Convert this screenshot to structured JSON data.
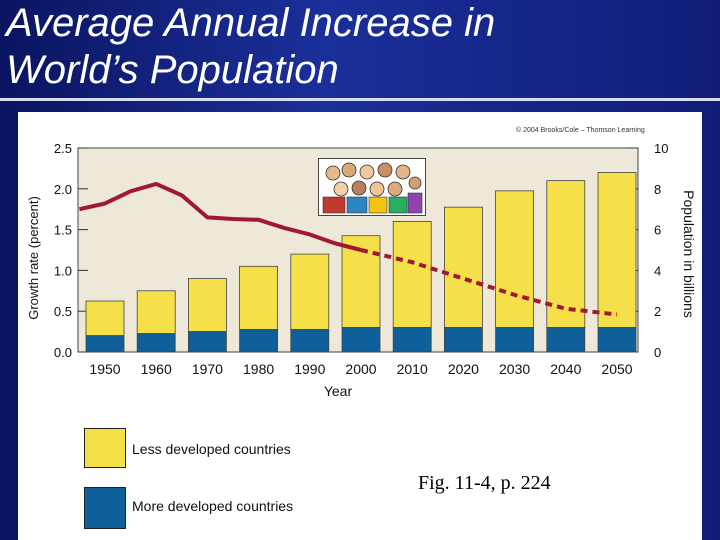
{
  "slide": {
    "title_line1": "Average Annual Increase in",
    "title_line2": "World’s Population",
    "copyright": "© 2004 Brooks/Cole – Thomson Learning",
    "caption": "Fig. 11-4, p. 224"
  },
  "legend": {
    "less_developed": "Less developed countries",
    "more_developed": "More developed countries"
  },
  "colors": {
    "less_developed": "#f5e04a",
    "more_developed": "#0e5f9a",
    "growth_line": "#a01835",
    "plot_bg": "#ede8d8"
  },
  "chart_data": {
    "type": "bar",
    "xlabel": "Year",
    "ylabel_left": "Growth rate (percent)",
    "ylabel_right": "Population in billions",
    "x_tick_labels": [
      "1950",
      "1960",
      "1970",
      "1980",
      "1990",
      "2000",
      "2010",
      "2020",
      "2030",
      "2040",
      "2050"
    ],
    "left_ylim": [
      0,
      2.5
    ],
    "left_ticks": [
      "0.0",
      "0.5",
      "1.0",
      "1.5",
      "2.0",
      "2.5"
    ],
    "right_ylim": [
      0,
      10
    ],
    "right_ticks": [
      "0",
      "2",
      "4",
      "6",
      "8",
      "10"
    ],
    "stacked_series": [
      {
        "name": "More developed countries",
        "values": [
          0.8,
          0.9,
          1.0,
          1.1,
          1.1,
          1.2,
          1.2,
          1.2,
          1.2,
          1.2,
          1.2
        ]
      },
      {
        "name": "Less developed countries",
        "values": [
          1.7,
          2.1,
          2.6,
          3.1,
          3.7,
          4.5,
          5.2,
          5.9,
          6.7,
          7.2,
          7.6
        ]
      }
    ],
    "growth_rate_line": {
      "name": "Growth rate",
      "x": [
        1945,
        1950,
        1955,
        1960,
        1965,
        1970,
        1975,
        1980,
        1985,
        1990,
        1995,
        2000,
        2010,
        2020,
        2030,
        2040,
        2050
      ],
      "y": [
        1.75,
        1.82,
        1.97,
        2.06,
        1.92,
        1.65,
        1.63,
        1.62,
        1.52,
        1.44,
        1.33,
        1.25,
        1.1,
        0.9,
        0.7,
        0.53,
        0.46
      ],
      "projection_from": 2000
    }
  }
}
